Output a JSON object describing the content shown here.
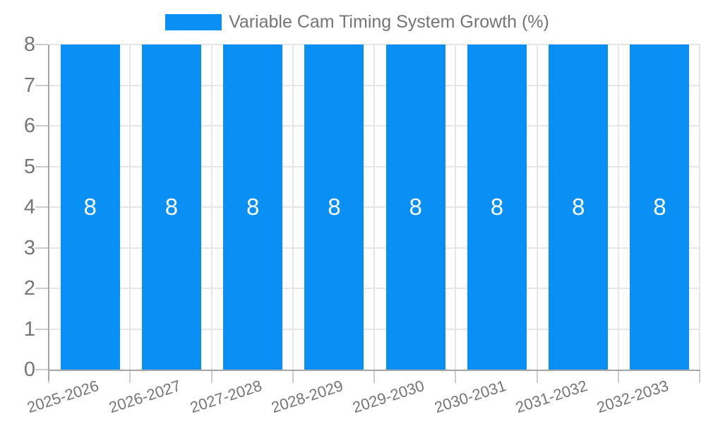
{
  "chart_data": {
    "type": "bar",
    "title": "Variable Cam Timing System Growth (%)",
    "categories": [
      "2025-2026",
      "2026-2027",
      "2027-2028",
      "2028-2029",
      "2029-2030",
      "2030-2031",
      "2031-2032",
      "2032-2033"
    ],
    "values": [
      8,
      8,
      8,
      8,
      8,
      8,
      8,
      8
    ],
    "value_labels": [
      "8",
      "8",
      "8",
      "8",
      "8",
      "8",
      "8",
      "8"
    ],
    "xlabel": "",
    "ylabel": "",
    "ylim": [
      0,
      8
    ],
    "y_ticks": [
      0,
      1,
      2,
      3,
      4,
      5,
      6,
      7,
      8
    ],
    "grid": true,
    "legend_position": "top",
    "colors": {
      "bar": "#0a8ff5",
      "value_label": "#ffffff",
      "axis_text": "#757575",
      "axis_line": "#a6a6a6",
      "gridline": "#e6e6e6",
      "tick": "#cccccc",
      "background": "#ffffff"
    }
  }
}
